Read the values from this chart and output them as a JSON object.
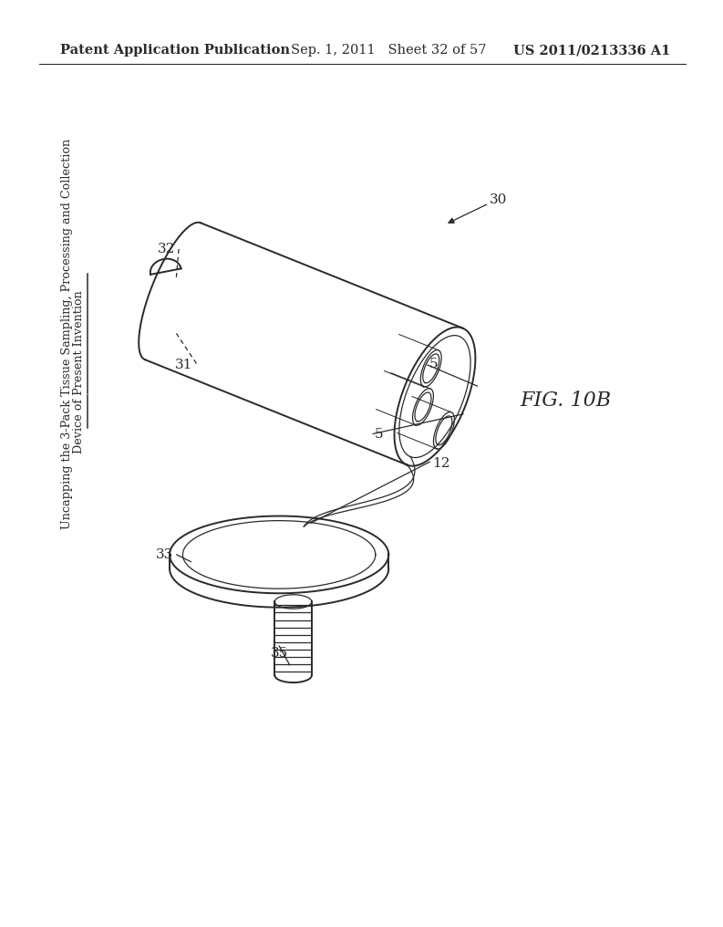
{
  "header_left": "Patent Application Publication",
  "header_mid": "Sep. 1, 2011   Sheet 32 of 57",
  "header_right": "US 2011/0213336 A1",
  "fig_label": "FIG. 10B",
  "side_label_line1": "Uncapping the 3-Pack Tissue Sampling, Processing and Collection",
  "side_label_line2": "Device of Present Invention",
  "background": "#ffffff",
  "line_color": "#2a2a2a",
  "lw_main": 1.4,
  "lw_thin": 0.9,
  "tilt_deg": 25
}
